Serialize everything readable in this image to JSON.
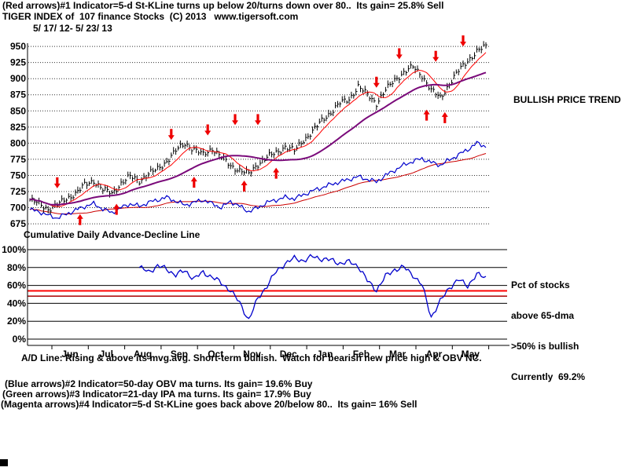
{
  "header": {
    "line1": "(Red arrows)#1 Indicator=5-d St-KLine turns up below 20/turns down over 80..  Its gain= 25.8% Sell",
    "line2": "TIGER INDEX of  107 finance Stocks  (C) 2013   www.tigersoft.com",
    "line3": "5/ 17/ 12- 5/ 23/ 13"
  },
  "annotations": {
    "bullish_trend": "BULLISH PRICE TREND",
    "ad_label": "Cumulative Daily Advance-Decline Line",
    "pct_lines": [
      "Pct of stocks",
      "above 65-dma",
      ">50% is bullish",
      "Currently  69.2%"
    ],
    "ad_note": "A/D Line: Rising & above its mvg.avg. Short-term bullish.  Watch for bearish new price high & OBV NC."
  },
  "footer": {
    "line1": "(Blue arrows)#2 Indicator=50-day OBV ma turns. Its gain= 19.6% Buy",
    "line2": "(Green arrows)#3 Indicator=21-day IPA ma turns. Its gain= 17.9% Buy",
    "line3": "(Magenta arrows)#4 Indicator=5-d St-KLine goes back above 20/below 80..  Its gain= 16% Sell"
  },
  "chart_data": [
    {
      "type": "ohlc",
      "name": "TIGER INDEX of 107 finance Stocks - daily price bars",
      "date_range": "5/17/12 - 5/23/13",
      "ylim": [
        669,
        955
      ],
      "yticks": [
        950,
        925,
        900,
        875,
        850,
        825,
        800,
        775,
        750,
        725,
        700,
        675
      ],
      "x_categories": [
        "Jun",
        "Jul",
        "Aug",
        "Sep",
        "Oct",
        "Nov",
        "Dec",
        "Jan",
        "Feb",
        "Mar",
        "Apr",
        "May"
      ],
      "sampling": "weekly closes estimated from chart",
      "close_weekly": [
        712,
        706,
        698,
        704,
        714,
        722,
        735,
        742,
        728,
        722,
        738,
        748,
        742,
        752,
        760,
        772,
        788,
        800,
        790,
        782,
        792,
        778,
        765,
        758,
        752,
        768,
        778,
        785,
        795,
        788,
        805,
        818,
        835,
        848,
        862,
        868,
        888,
        875,
        862,
        882,
        898,
        910,
        918,
        905,
        882,
        870,
        892,
        912,
        928,
        942,
        950
      ],
      "obv_weekly": [
        697,
        694,
        688,
        684,
        690,
        696,
        702,
        706,
        698,
        692,
        700,
        706,
        702,
        708,
        712,
        716,
        710,
        704,
        708,
        712,
        706,
        700,
        710,
        702,
        694,
        700,
        708,
        712,
        716,
        714,
        720,
        726,
        731,
        736,
        740,
        744,
        748,
        744,
        740,
        750,
        758,
        766,
        772,
        776,
        770,
        766,
        774,
        782,
        790,
        800,
        795
      ],
      "signal_arrows": [
        {
          "week": 3,
          "dir": "down",
          "value": 730
        },
        {
          "week": 5.5,
          "dir": "up",
          "value": 690
        },
        {
          "week": 9.5,
          "dir": "up",
          "value": 706
        },
        {
          "week": 15.5,
          "dir": "down",
          "value": 805
        },
        {
          "week": 18,
          "dir": "up",
          "value": 748
        },
        {
          "week": 19.5,
          "dir": "down",
          "value": 812
        },
        {
          "week": 22.5,
          "dir": "down",
          "value": 828
        },
        {
          "week": 23.5,
          "dir": "up",
          "value": 742
        },
        {
          "week": 25,
          "dir": "down",
          "value": 828
        },
        {
          "week": 27,
          "dir": "up",
          "value": 762
        },
        {
          "week": 38,
          "dir": "down",
          "value": 886
        },
        {
          "week": 40.5,
          "dir": "down",
          "value": 930
        },
        {
          "week": 43.5,
          "dir": "up",
          "value": 852
        },
        {
          "week": 44.5,
          "dir": "down",
          "value": 926
        },
        {
          "week": 45.5,
          "dir": "up",
          "value": 848
        },
        {
          "week": 47.5,
          "dir": "down",
          "value": 950
        }
      ],
      "styles": {
        "bar": "#000000",
        "ma_slow": "#7a0a7a",
        "ma_fast": "#ff0000",
        "obv": "#0000cc",
        "obv_ma": "#cc0000",
        "arrow": "#ee0000",
        "grid": "#333333"
      }
    },
    {
      "type": "line",
      "name": "Pct of stocks above 65-dma",
      "ylim": [
        0,
        100
      ],
      "yticks": [
        {
          "value": 100,
          "label": "100%"
        },
        {
          "value": 80,
          "label": "80%"
        },
        {
          "value": 60,
          "label": "60%"
        },
        {
          "value": 40,
          "label": "40%"
        },
        {
          "value": 20,
          "label": "20%"
        },
        {
          "value": 0,
          "label": "0%"
        }
      ],
      "values_weekly": [
        null,
        null,
        null,
        null,
        null,
        null,
        null,
        null,
        null,
        null,
        null,
        null,
        80,
        75,
        82,
        78,
        72,
        76,
        68,
        74,
        70,
        62,
        55,
        40,
        22,
        45,
        60,
        75,
        85,
        90,
        88,
        92,
        90,
        88,
        85,
        86,
        82,
        65,
        55,
        70,
        78,
        80,
        72,
        60,
        25,
        42,
        58,
        66,
        60,
        72,
        69
      ],
      "threshold_lines": [
        {
          "value": 54,
          "color": "#ff0000",
          "width": 2
        },
        {
          "value": 48,
          "color": "#aa0000",
          "width": 1.5
        }
      ],
      "current_pct": 69.2,
      "styles": {
        "line": "#0000cc",
        "grid": "#000000"
      }
    }
  ]
}
